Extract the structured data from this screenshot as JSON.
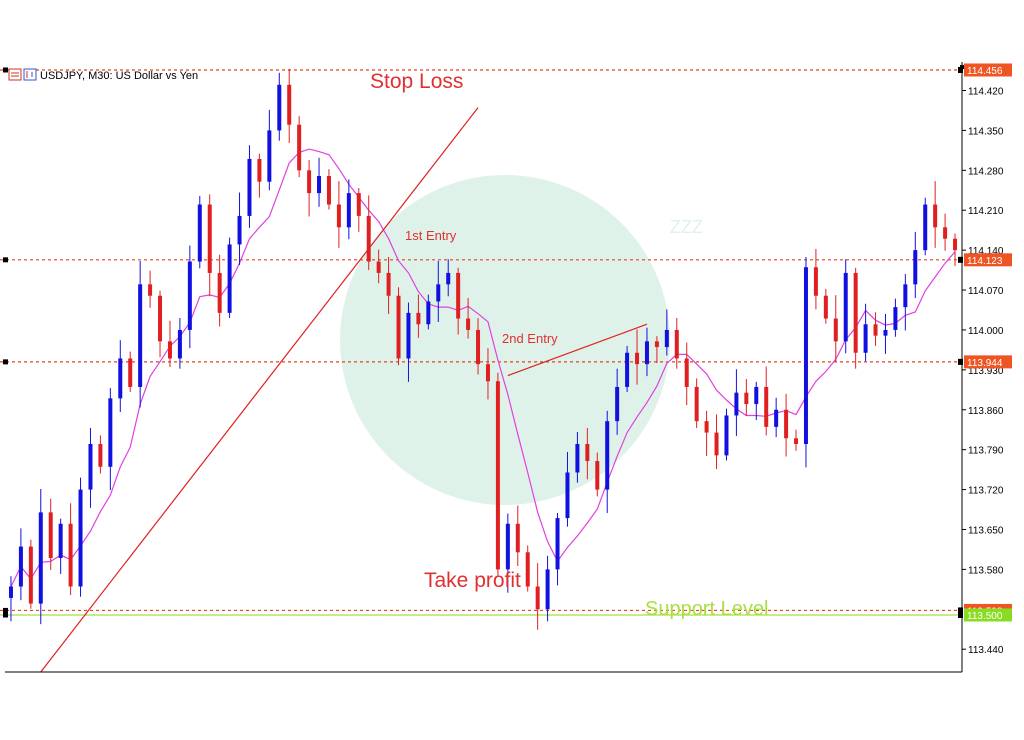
{
  "header": {
    "symbol_label": "USDJPY, M30:  US Dollar vs Yen"
  },
  "watermark": {
    "text": "ZZZ"
  },
  "colors": {
    "bull": "#1010e0",
    "bear": "#e02020",
    "ma": "#e040e0",
    "trend": "#e02020",
    "hline": "#e84020",
    "support": "#a0e040",
    "tag_bg": "#ee5522",
    "support_tag_bg": "#88dd22",
    "watermark": "#dff2ea"
  },
  "annotations": {
    "stop_loss": "Stop Loss",
    "entry1": "1st Entry",
    "entry2": "2nd Entry",
    "take_profit": "Take profit",
    "support": "Support Level"
  },
  "chart_data": {
    "type": "candlestick",
    "title": "USDJPY, M30:  US Dollar vs Yen",
    "symbol": "USDJPY",
    "timeframe": "M30",
    "ylim": [
      113.4,
      114.47
    ],
    "y_ticks": [
      "114.420",
      "114.350",
      "114.280",
      "114.210",
      "114.140",
      "114.070",
      "114.000",
      "113.930",
      "113.860",
      "113.790",
      "113.720",
      "113.650",
      "113.580",
      "113.440"
    ],
    "price_levels": [
      {
        "name": "Stop Loss",
        "value": "114.456",
        "style": "dashed"
      },
      {
        "name": "1st Entry",
        "value": "114.123",
        "style": "dashed"
      },
      {
        "name": "2nd Entry",
        "value": "113.944",
        "style": "dashed"
      },
      {
        "name": "Take profit",
        "value": "113.508",
        "style": "dashed"
      },
      {
        "name": "Support Level",
        "value": "113.500",
        "style": "solid"
      }
    ],
    "close_path": [
      113.55,
      113.62,
      113.52,
      113.68,
      113.6,
      113.66,
      113.55,
      113.72,
      113.8,
      113.76,
      113.88,
      113.95,
      113.9,
      114.08,
      114.06,
      113.98,
      113.95,
      114.0,
      114.12,
      114.22,
      114.1,
      114.03,
      114.15,
      114.2,
      114.3,
      114.26,
      114.35,
      114.43,
      114.36,
      114.28,
      114.24,
      114.27,
      114.22,
      114.18,
      114.24,
      114.2,
      114.12,
      114.1,
      114.06,
      113.95,
      114.03,
      114.01,
      114.05,
      114.08,
      114.1,
      114.02,
      114.0,
      113.94,
      113.91,
      113.58,
      113.66,
      113.61,
      113.55,
      113.51,
      113.58,
      113.67,
      113.75,
      113.8,
      113.77,
      113.72,
      113.84,
      113.9,
      113.96,
      113.94,
      113.98,
      113.97,
      114.0,
      113.95,
      113.9,
      113.84,
      113.82,
      113.78,
      113.85,
      113.89,
      113.87,
      113.9,
      113.83,
      113.86,
      113.81,
      113.8,
      114.11,
      114.06,
      114.02,
      113.98,
      114.1,
      113.96,
      114.01,
      113.99,
      114.0,
      114.04,
      114.08,
      114.14,
      114.22,
      114.18,
      114.16,
      114.14
    ],
    "trendline": {
      "from": {
        "bar": 3,
        "price": 113.4
      },
      "to": {
        "bar": 47,
        "price": 114.39
      }
    },
    "entry_line": {
      "from": {
        "bar": 50,
        "price": 113.92
      },
      "to": {
        "bar": 64,
        "price": 114.01
      }
    },
    "moving_average": "smoothed close"
  }
}
